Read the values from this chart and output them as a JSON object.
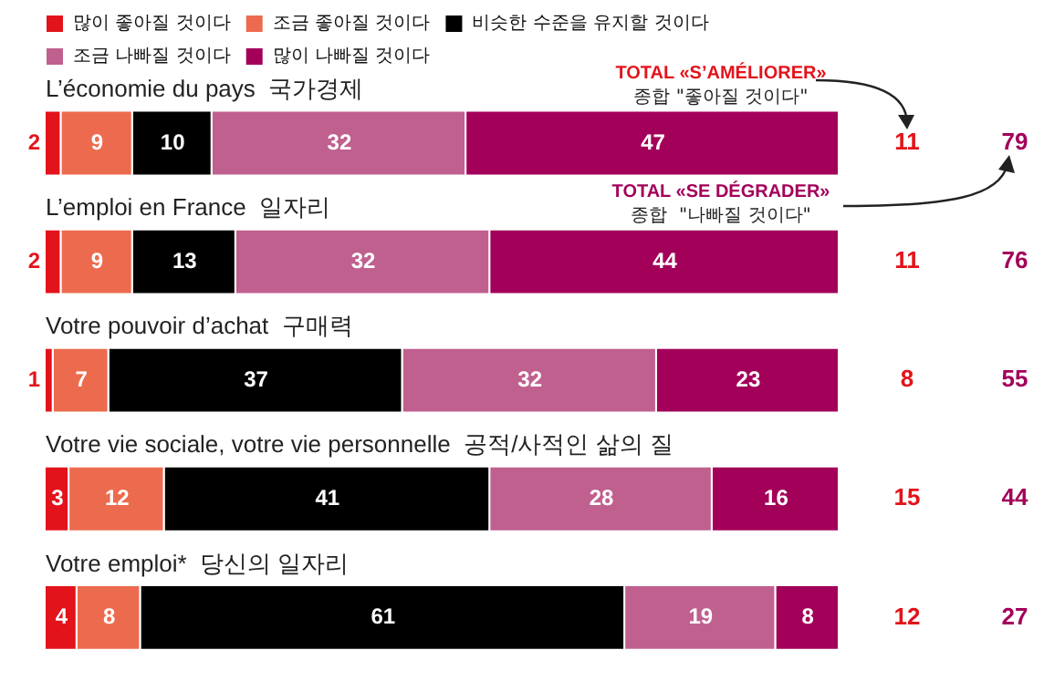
{
  "chart_data": {
    "type": "bar",
    "orientation": "horizontal",
    "stacked": true,
    "categories": [
      "L’économie du pays  국가경제",
      "L’emploi en France  일자리",
      "Votre pouvoir d’achat  구매력",
      "Votre vie sociale, votre vie personnelle  공적/사적인 삶의 질",
      "Votre emploi*  당신의 일자리"
    ],
    "series": [
      {
        "name": "많이 좋아질 것이다",
        "color": "#e3131b",
        "values": [
          2,
          2,
          1,
          3,
          4
        ]
      },
      {
        "name": "조금 좋아질 것이다",
        "color": "#ec6b4e",
        "values": [
          9,
          9,
          7,
          12,
          8
        ]
      },
      {
        "name": "비슷한 수준을 유지할 것이다",
        "color": "#000000",
        "values": [
          10,
          13,
          37,
          41,
          61
        ]
      },
      {
        "name": "조금 나빠질 것이다",
        "color": "#c0608f",
        "values": [
          32,
          32,
          32,
          28,
          19
        ]
      },
      {
        "name": "많이 나빠질 것이다",
        "color": "#a3005a",
        "values": [
          47,
          44,
          23,
          16,
          8
        ]
      }
    ],
    "xlim": [
      0,
      100
    ],
    "tick_labels": "y",
    "legend": "top",
    "data_labels": true,
    "annotations": [
      "TOTAL «S’AMÉLIORER»",
      "종합 \"좋아질 것이다\"",
      "TOTAL «SE DÉGRADER»",
      "종합  \"나빠질 것이다\"",
      "11",
      "79",
      "11",
      "76",
      "8",
      "55",
      "15",
      "44",
      "12",
      "27"
    ]
  }
}
